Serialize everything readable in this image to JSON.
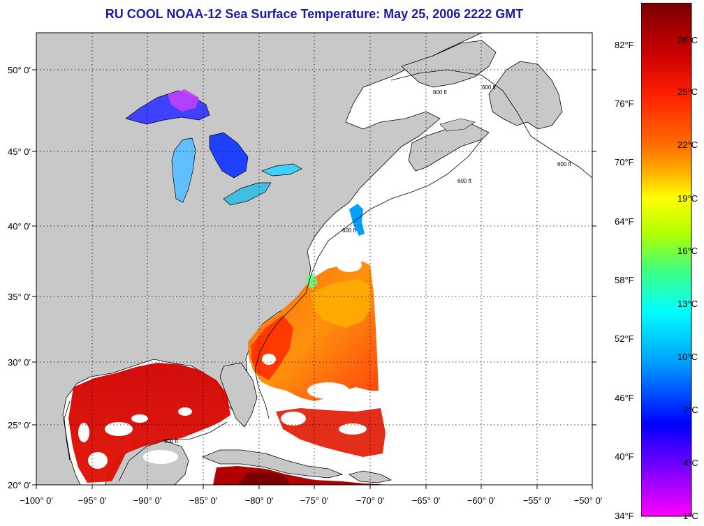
{
  "title": "RU COOL  NOAA-12  Sea Surface Temperature:  May 25, 2006 2222 GMT",
  "map": {
    "lon_range": [
      -100,
      -50
    ],
    "lat_range": [
      19.7,
      52.5
    ],
    "lon_ticks": [
      "−100° 0'",
      "−95° 0'",
      "−90° 0'",
      "−85° 0'",
      "−80° 0'",
      "−75° 0'",
      "−70° 0'",
      "−65° 0'",
      "−60° 0'",
      "−55° 0'",
      "−50° 0'"
    ],
    "lat_ticks": [
      "20° 0'",
      "25° 0'",
      "30° 0'",
      "35° 0'",
      "40° 0'",
      "45° 0'",
      "50° 0'"
    ],
    "contour_label": "600 ft",
    "land_color": "#c8c8c8",
    "no_data_color": "#ffffff",
    "grid": "dotted"
  },
  "colorbar": {
    "fahrenheit_labels": [
      "82°F",
      "76°F",
      "70°F",
      "64°F",
      "58°F",
      "52°F",
      "46°F",
      "40°F",
      "34°F"
    ],
    "celsius_labels": [
      "28°C",
      "25°C",
      "22°C",
      "19°C",
      "16°C",
      "13°C",
      "10°C",
      "7°C",
      "4°C",
      "1°C"
    ],
    "colors_top_to_bottom": [
      "#7a0000",
      "#cc0000",
      "#ff2000",
      "#ff7000",
      "#ffb000",
      "#ffff00",
      "#b0ff00",
      "#40ff80",
      "#00ffff",
      "#00a0ff",
      "#0000ff",
      "#7000ff",
      "#ff00ff"
    ]
  }
}
